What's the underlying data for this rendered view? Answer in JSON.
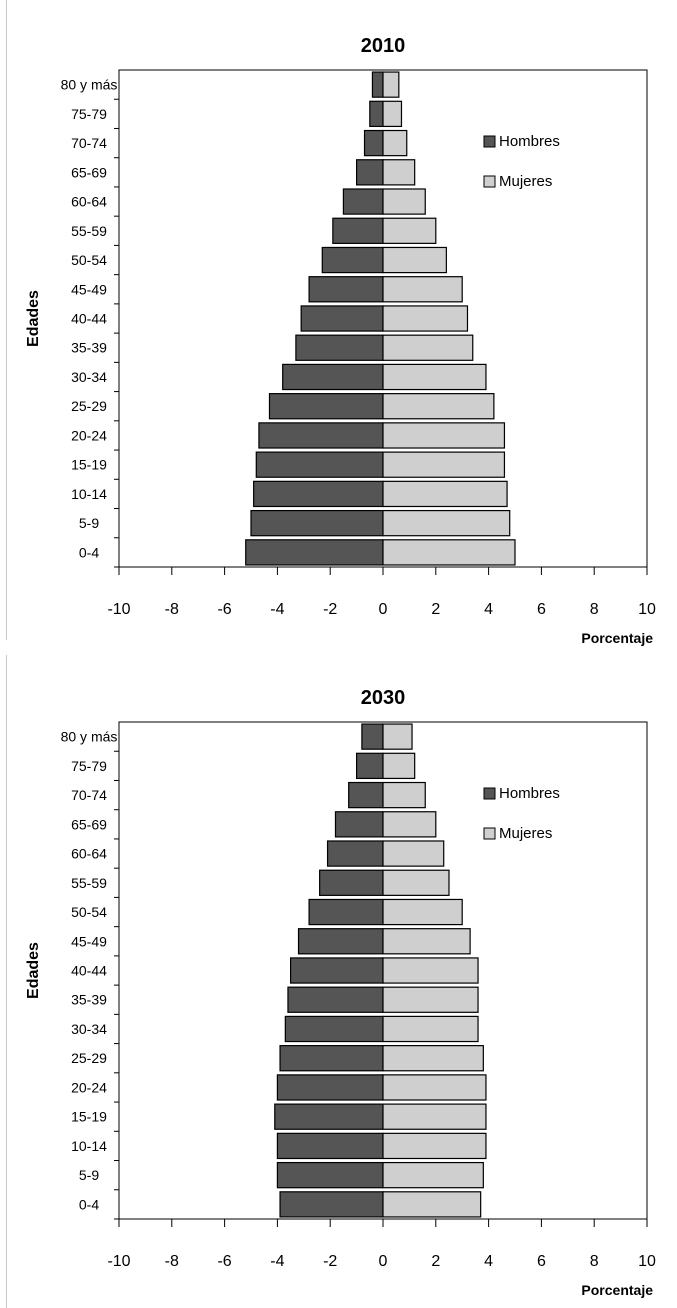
{
  "chart_data": [
    {
      "type": "bar",
      "orientation": "horizontal",
      "title": "2010",
      "xlabel": "Porcentaje",
      "ylabel": "Edades",
      "xlim": [
        -10,
        10
      ],
      "xticks": [
        -10,
        -8,
        -6,
        -4,
        -2,
        0,
        2,
        4,
        6,
        8,
        10
      ],
      "categories": [
        "0-4",
        "5-9",
        "10-14",
        "15-19",
        "20-24",
        "25-29",
        "30-34",
        "35-39",
        "40-44",
        "45-49",
        "50-54",
        "55-59",
        "60-64",
        "65-69",
        "70-74",
        "75-79",
        "80 y más"
      ],
      "series": [
        {
          "name": "Hombres",
          "color": "#555555",
          "values": [
            -5.2,
            -5.0,
            -4.9,
            -4.8,
            -4.7,
            -4.3,
            -3.8,
            -3.3,
            -3.1,
            -2.8,
            -2.3,
            -1.9,
            -1.5,
            -1.0,
            -0.7,
            -0.5,
            -0.4
          ]
        },
        {
          "name": "Mujeres",
          "color": "#cfcfcf",
          "values": [
            5.0,
            4.8,
            4.7,
            4.6,
            4.6,
            4.2,
            3.9,
            3.4,
            3.2,
            3.0,
            2.4,
            2.0,
            1.6,
            1.2,
            0.9,
            0.7,
            0.6
          ]
        }
      ],
      "legend_position": "top-right",
      "grid": false
    },
    {
      "type": "bar",
      "orientation": "horizontal",
      "title": "2030",
      "xlabel": "Porcentaje",
      "ylabel": "Edades",
      "xlim": [
        -10,
        10
      ],
      "xticks": [
        -10,
        -8,
        -6,
        -4,
        -2,
        0,
        2,
        4,
        6,
        8,
        10
      ],
      "categories": [
        "0-4",
        "5-9",
        "10-14",
        "15-19",
        "20-24",
        "25-29",
        "30-34",
        "35-39",
        "40-44",
        "45-49",
        "50-54",
        "55-59",
        "60-64",
        "65-69",
        "70-74",
        "75-79",
        "80 y más"
      ],
      "series": [
        {
          "name": "Hombres",
          "color": "#555555",
          "values": [
            -3.9,
            -4.0,
            -4.0,
            -4.1,
            -4.0,
            -3.9,
            -3.7,
            -3.6,
            -3.5,
            -3.2,
            -2.8,
            -2.4,
            -2.1,
            -1.8,
            -1.3,
            -1.0,
            -0.8
          ]
        },
        {
          "name": "Mujeres",
          "color": "#cfcfcf",
          "values": [
            3.7,
            3.8,
            3.9,
            3.9,
            3.9,
            3.8,
            3.6,
            3.6,
            3.6,
            3.3,
            3.0,
            2.5,
            2.3,
            2.0,
            1.6,
            1.2,
            1.1
          ]
        }
      ],
      "legend_position": "top-right",
      "grid": false
    }
  ]
}
